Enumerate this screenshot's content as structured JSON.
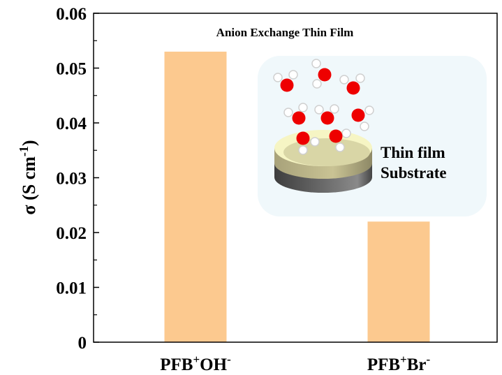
{
  "chart_data": {
    "type": "bar",
    "categories": [
      "PFB+OH-",
      "PFB+Br-"
    ],
    "category_labels": [
      {
        "base": "PFB",
        "sup1": "+",
        "ion": "OH",
        "sup2": "-"
      },
      {
        "base": "PFB",
        "sup1": "+",
        "ion": "Br",
        "sup2": "-"
      }
    ],
    "values": [
      0.053,
      0.022
    ],
    "ylabel": {
      "main": "σ (S cm",
      "sup": "-1",
      "close": ")"
    },
    "ylim": [
      0,
      0.06
    ],
    "yticks": [
      "0",
      "0.01",
      "0.02",
      "0.03",
      "0.04",
      "0.05",
      "0.06"
    ],
    "grid": false,
    "bar_color": "#fcc98f",
    "inset": {
      "title": "Anion Exchange Thin Film",
      "label_film": "Thin film",
      "label_substrate": "Substrate",
      "background": "#f0f8fb",
      "oxygen_color": "#ee0000"
    }
  }
}
